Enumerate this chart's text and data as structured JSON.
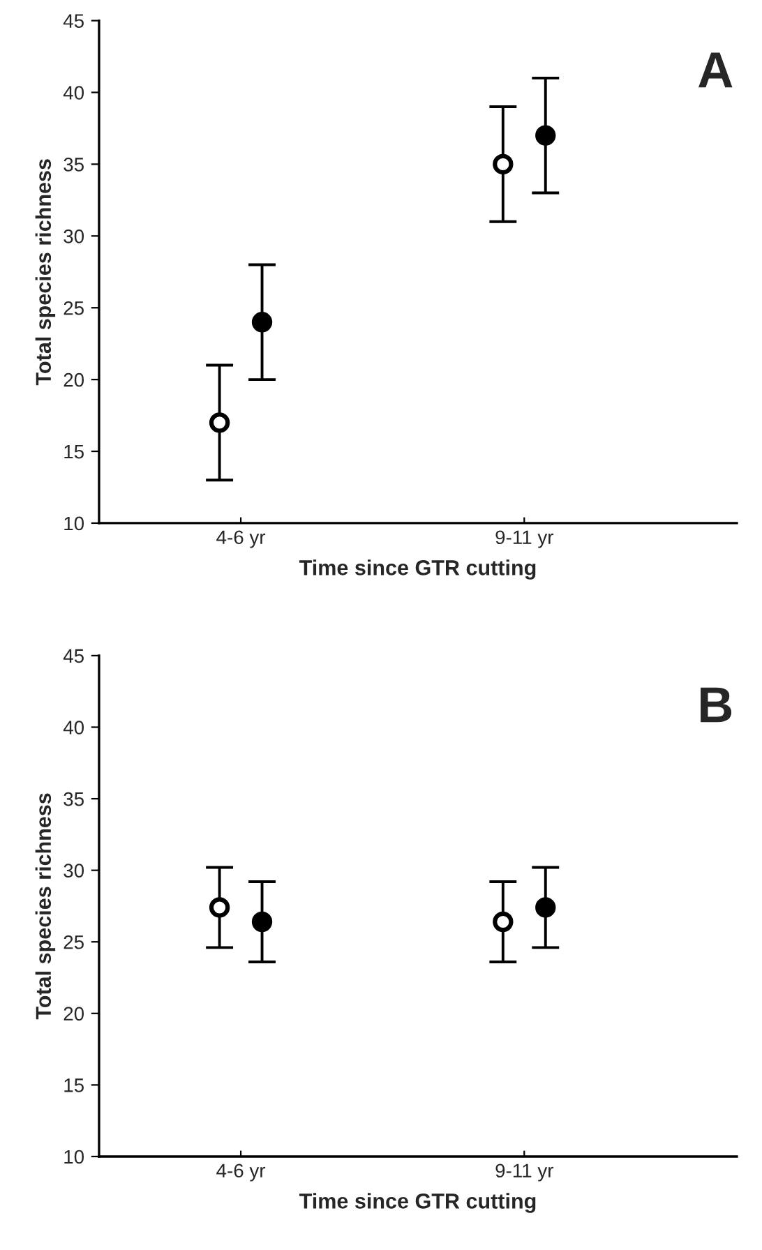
{
  "chart_data": [
    {
      "type": "scatter",
      "title": "A",
      "xlabel": "Time since GTR cutting",
      "ylabel": "Total species richness",
      "categories": [
        "4-6 yr",
        "9-11 yr"
      ],
      "ylim": [
        10,
        45
      ],
      "yticks": [
        10,
        15,
        20,
        25,
        30,
        35,
        40,
        45
      ],
      "marker": "circle",
      "grid": false,
      "legend": false,
      "series": [
        {
          "color": "#ffffff",
          "values": [
            17,
            35
          ],
          "errors": [
            4,
            4
          ]
        },
        {
          "color": "#000000",
          "values": [
            24,
            37
          ],
          "errors": [
            4,
            4
          ]
        }
      ]
    },
    {
      "type": "scatter",
      "title": "B",
      "xlabel": "Time since GTR cutting",
      "ylabel": "Total species richness",
      "categories": [
        "4-6 yr",
        "9-11 yr"
      ],
      "ylim": [
        10,
        45
      ],
      "yticks": [
        10,
        15,
        20,
        25,
        30,
        35,
        40,
        45
      ],
      "marker": "circle",
      "grid": false,
      "legend": false,
      "series": [
        {
          "color": "#ffffff",
          "values": [
            27.4,
            26.4
          ],
          "errors": [
            2.8,
            2.8
          ]
        },
        {
          "color": "#000000",
          "values": [
            26.4,
            27.4
          ],
          "errors": [
            2.8,
            2.8
          ]
        }
      ]
    }
  ]
}
